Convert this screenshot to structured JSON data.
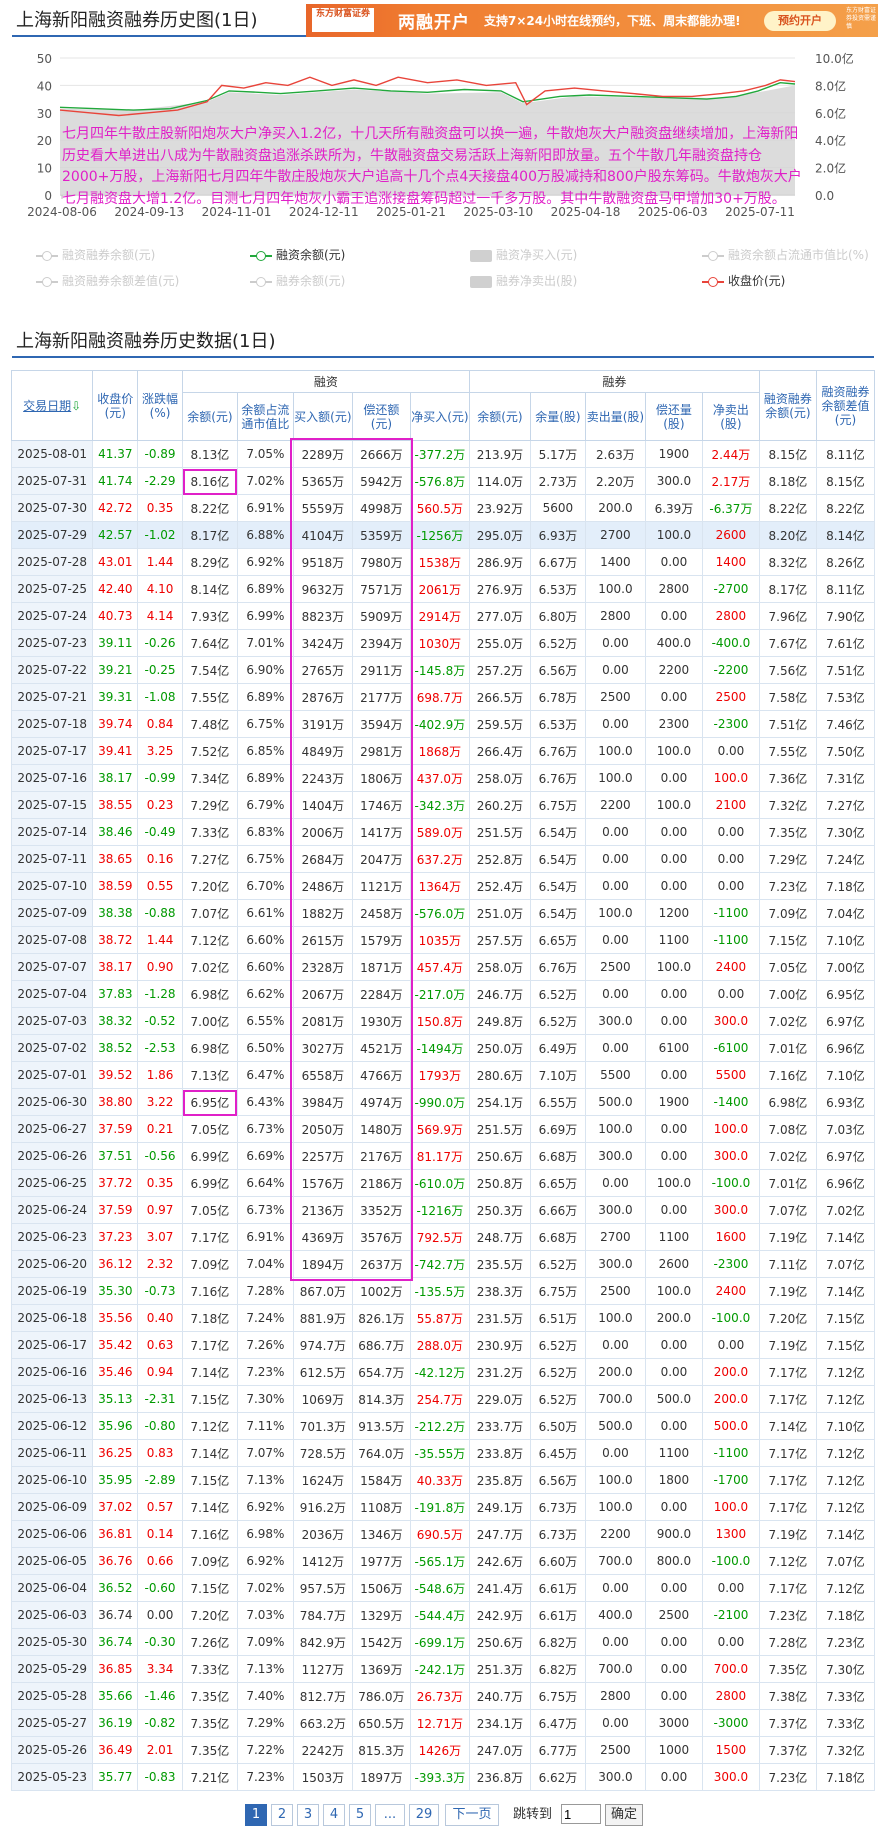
{
  "chart_section": {
    "title": "上海新阳融资融券历史图(1日)"
  },
  "banner": {
    "logo_text": "东方财富证券",
    "main_text": "两融开户",
    "sub_text": "支持7×24小时在线预约，下班、周末都能办理!",
    "button_label": "预约开户",
    "fine_print": "东方财富证券投资需谨慎"
  },
  "chart_data": {
    "type": "line",
    "x_ticks": [
      "2024-08-06",
      "2024-09-13",
      "2024-11-01",
      "2024-12-11",
      "2025-01-21",
      "2025-03-10",
      "2025-04-18",
      "2025-06-03",
      "2025-07-11"
    ],
    "left_axis_ticks": [
      "50",
      "40",
      "30",
      "20",
      "10",
      "0"
    ],
    "right_axis_ticks": [
      "10.0亿",
      "8.0亿",
      "6.0亿",
      "4.0亿",
      "2.0亿",
      "0.0"
    ],
    "ylim_left": [
      0,
      50
    ],
    "ylim_right": [
      0,
      10
    ],
    "series": [
      {
        "name": "融资余额(元)",
        "color": "#22a83c",
        "axis": "right",
        "x": [
          0,
          0.05,
          0.1,
          0.15,
          0.2,
          0.23,
          0.27,
          0.3,
          0.35,
          0.4,
          0.45,
          0.5,
          0.55,
          0.6,
          0.63,
          0.68,
          0.72,
          0.78,
          0.83,
          0.88,
          0.92,
          0.95,
          0.98,
          1.0
        ],
        "values": [
          6.4,
          6.3,
          6.2,
          6.3,
          6.9,
          7.6,
          7.5,
          7.4,
          7.6,
          7.8,
          7.6,
          7.5,
          7.7,
          7.6,
          6.8,
          7.2,
          7.3,
          7.2,
          7.1,
          7.0,
          7.2,
          7.6,
          8.2,
          8.1
        ]
      },
      {
        "name": "收盘价(元)",
        "color": "#e8443a",
        "axis": "left",
        "x": [
          0,
          0.04,
          0.08,
          0.12,
          0.16,
          0.2,
          0.22,
          0.25,
          0.28,
          0.31,
          0.34,
          0.37,
          0.4,
          0.43,
          0.46,
          0.5,
          0.54,
          0.58,
          0.62,
          0.635,
          0.66,
          0.7,
          0.74,
          0.78,
          0.82,
          0.86,
          0.9,
          0.93,
          0.96,
          0.98,
          1.0
        ],
        "values": [
          31,
          30,
          29,
          30,
          31,
          34,
          40,
          39,
          41,
          40,
          43,
          40,
          42,
          40,
          43,
          41,
          42,
          40,
          41,
          33,
          38,
          39,
          38,
          37,
          36,
          36,
          37,
          38,
          40,
          42,
          41.4
        ]
      },
      {
        "name": "融资余额区域",
        "color": "#d6d6d6",
        "axis": "right",
        "x": [
          0,
          0.1,
          0.2,
          0.23,
          0.3,
          0.4,
          0.5,
          0.6,
          0.63,
          0.7,
          0.8,
          0.9,
          0.95,
          1.0
        ],
        "values": [
          6.3,
          6.2,
          6.8,
          7.5,
          7.3,
          7.7,
          7.4,
          7.5,
          6.7,
          7.2,
          7.1,
          7.1,
          7.5,
          8.0
        ]
      }
    ],
    "annotation": "七月四年牛散庄股新阳炮灰大户净买入1.2亿，十几天所有融资盘可以换一遍，牛散炮灰大户融资盘继续增加，上海新阳历史看大单进出八成为牛散融资盘追涨杀跌所为，牛散融资盘交易活跃上海新阳即放量。五个牛散几年融资盘持仓2000+万股，上海新阳七月四年牛散庄股炮灰大户追高十几个点4天接盘400万股减持和800户股东筹码。牛散炮灰大户七月融资盘大增1.2亿。目测七月四年炮灰小霸王追涨接盘筹码超过一千多万股。其中牛散融资盘马甲增加30+万股。",
    "legend": [
      {
        "label": "融资融券余额(元)",
        "active": false,
        "kind": "line"
      },
      {
        "label": "融资余额(元)",
        "active": true,
        "kind": "line",
        "color": "#22a83c"
      },
      {
        "label": "融资净买入(元)",
        "active": false,
        "kind": "rect"
      },
      {
        "label": "融资余额占流通市值比(%)",
        "active": false,
        "kind": "line"
      },
      {
        "label": "融资融券余额差值(元)",
        "active": false,
        "kind": "line"
      },
      {
        "label": "融券余额(元)",
        "active": false,
        "kind": "line"
      },
      {
        "label": "融券净卖出(股)",
        "active": false,
        "kind": "rect"
      },
      {
        "label": "收盘价(元)",
        "active": true,
        "kind": "line",
        "color": "#e8443a"
      }
    ]
  },
  "table_section": {
    "title": "上海新阳融资融券历史数据(1日)"
  },
  "table": {
    "group_headers": {
      "rz": "融资",
      "rq": "融券"
    },
    "headers": {
      "date": "交易日期",
      "close": "收盘价(元)",
      "chg": "涨跌幅(%)",
      "rz_bal": "余额(元)",
      "rz_ratio": "余额占流通市值比",
      "rz_buy": "买入额(元)",
      "rz_repay": "偿还额(元)",
      "rz_net": "净买入(元)",
      "rq_bal": "余额(元)",
      "rq_vol": "余量(股)",
      "rq_sell": "卖出量(股)",
      "rq_repay": "偿还量(股)",
      "rq_net": "净卖出(股)",
      "total": "融资融券余额(元)",
      "diff": "融资融券余额差值(元)"
    },
    "rows": [
      [
        "2025-08-01",
        "41.37",
        "-0.89",
        "8.13亿",
        "7.05%",
        "2289万",
        "2666万",
        "-377.2万",
        "213.9万",
        "5.17万",
        "2.63万",
        "1900",
        "2.44万",
        "8.15亿",
        "8.11亿"
      ],
      [
        "2025-07-31",
        "41.74",
        "-2.29",
        "8.16亿",
        "7.02%",
        "5365万",
        "5942万",
        "-576.8万",
        "114.0万",
        "2.73万",
        "2.20万",
        "300.0",
        "2.17万",
        "8.18亿",
        "8.15亿"
      ],
      [
        "2025-07-30",
        "42.72",
        "0.35",
        "8.22亿",
        "6.91%",
        "5559万",
        "4998万",
        "560.5万",
        "23.92万",
        "5600",
        "200.0",
        "6.39万",
        "-6.37万",
        "8.22亿",
        "8.22亿"
      ],
      [
        "2025-07-29",
        "42.57",
        "-1.02",
        "8.17亿",
        "6.88%",
        "4104万",
        "5359万",
        "-1256万",
        "295.0万",
        "6.93万",
        "2700",
        "100.0",
        "2600",
        "8.20亿",
        "8.14亿"
      ],
      [
        "2025-07-28",
        "43.01",
        "1.44",
        "8.29亿",
        "6.92%",
        "9518万",
        "7980万",
        "1538万",
        "286.9万",
        "6.67万",
        "1400",
        "0.00",
        "1400",
        "8.32亿",
        "8.26亿"
      ],
      [
        "2025-07-25",
        "42.40",
        "4.10",
        "8.14亿",
        "6.89%",
        "9632万",
        "7571万",
        "2061万",
        "276.9万",
        "6.53万",
        "100.0",
        "2800",
        "-2700",
        "8.17亿",
        "8.11亿"
      ],
      [
        "2025-07-24",
        "40.73",
        "4.14",
        "7.93亿",
        "6.99%",
        "8823万",
        "5909万",
        "2914万",
        "277.0万",
        "6.80万",
        "2800",
        "0.00",
        "2800",
        "7.96亿",
        "7.90亿"
      ],
      [
        "2025-07-23",
        "39.11",
        "-0.26",
        "7.64亿",
        "7.01%",
        "3424万",
        "2394万",
        "1030万",
        "255.0万",
        "6.52万",
        "0.00",
        "400.0",
        "-400.0",
        "7.67亿",
        "7.61亿"
      ],
      [
        "2025-07-22",
        "39.21",
        "-0.25",
        "7.54亿",
        "6.90%",
        "2765万",
        "2911万",
        "-145.8万",
        "257.2万",
        "6.56万",
        "0.00",
        "2200",
        "-2200",
        "7.56亿",
        "7.51亿"
      ],
      [
        "2025-07-21",
        "39.31",
        "-1.08",
        "7.55亿",
        "6.89%",
        "2876万",
        "2177万",
        "698.7万",
        "266.5万",
        "6.78万",
        "2500",
        "0.00",
        "2500",
        "7.58亿",
        "7.53亿"
      ],
      [
        "2025-07-18",
        "39.74",
        "0.84",
        "7.48亿",
        "6.75%",
        "3191万",
        "3594万",
        "-402.9万",
        "259.5万",
        "6.53万",
        "0.00",
        "2300",
        "-2300",
        "7.51亿",
        "7.46亿"
      ],
      [
        "2025-07-17",
        "39.41",
        "3.25",
        "7.52亿",
        "6.85%",
        "4849万",
        "2981万",
        "1868万",
        "266.4万",
        "6.76万",
        "100.0",
        "100.0",
        "0.00",
        "7.55亿",
        "7.50亿"
      ],
      [
        "2025-07-16",
        "38.17",
        "-0.99",
        "7.34亿",
        "6.89%",
        "2243万",
        "1806万",
        "437.0万",
        "258.0万",
        "6.76万",
        "100.0",
        "0.00",
        "100.0",
        "7.36亿",
        "7.31亿"
      ],
      [
        "2025-07-15",
        "38.55",
        "0.23",
        "7.29亿",
        "6.79%",
        "1404万",
        "1746万",
        "-342.3万",
        "260.2万",
        "6.75万",
        "2200",
        "100.0",
        "2100",
        "7.32亿",
        "7.27亿"
      ],
      [
        "2025-07-14",
        "38.46",
        "-0.49",
        "7.33亿",
        "6.83%",
        "2006万",
        "1417万",
        "589.0万",
        "251.5万",
        "6.54万",
        "0.00",
        "0.00",
        "0.00",
        "7.35亿",
        "7.30亿"
      ],
      [
        "2025-07-11",
        "38.65",
        "0.16",
        "7.27亿",
        "6.75%",
        "2684万",
        "2047万",
        "637.2万",
        "252.8万",
        "6.54万",
        "0.00",
        "0.00",
        "0.00",
        "7.29亿",
        "7.24亿"
      ],
      [
        "2025-07-10",
        "38.59",
        "0.55",
        "7.20亿",
        "6.70%",
        "2486万",
        "1121万",
        "1364万",
        "252.4万",
        "6.54万",
        "0.00",
        "0.00",
        "0.00",
        "7.23亿",
        "7.18亿"
      ],
      [
        "2025-07-09",
        "38.38",
        "-0.88",
        "7.07亿",
        "6.61%",
        "1882万",
        "2458万",
        "-576.0万",
        "251.0万",
        "6.54万",
        "100.0",
        "1200",
        "-1100",
        "7.09亿",
        "7.04亿"
      ],
      [
        "2025-07-08",
        "38.72",
        "1.44",
        "7.12亿",
        "6.60%",
        "2615万",
        "1579万",
        "1035万",
        "257.5万",
        "6.65万",
        "0.00",
        "1100",
        "-1100",
        "7.15亿",
        "7.10亿"
      ],
      [
        "2025-07-07",
        "38.17",
        "0.90",
        "7.02亿",
        "6.60%",
        "2328万",
        "1871万",
        "457.4万",
        "258.0万",
        "6.76万",
        "2500",
        "100.0",
        "2400",
        "7.05亿",
        "7.00亿"
      ],
      [
        "2025-07-04",
        "37.83",
        "-1.28",
        "6.98亿",
        "6.62%",
        "2067万",
        "2284万",
        "-217.0万",
        "246.7万",
        "6.52万",
        "0.00",
        "0.00",
        "0.00",
        "7.00亿",
        "6.95亿"
      ],
      [
        "2025-07-03",
        "38.32",
        "-0.52",
        "7.00亿",
        "6.55%",
        "2081万",
        "1930万",
        "150.8万",
        "249.8万",
        "6.52万",
        "300.0",
        "0.00",
        "300.0",
        "7.02亿",
        "6.97亿"
      ],
      [
        "2025-07-02",
        "38.52",
        "-2.53",
        "6.98亿",
        "6.50%",
        "3027万",
        "4521万",
        "-1494万",
        "250.0万",
        "6.49万",
        "0.00",
        "6100",
        "-6100",
        "7.01亿",
        "6.96亿"
      ],
      [
        "2025-07-01",
        "39.52",
        "1.86",
        "7.13亿",
        "6.47%",
        "6558万",
        "4766万",
        "1793万",
        "280.6万",
        "7.10万",
        "5500",
        "0.00",
        "5500",
        "7.16亿",
        "7.10亿"
      ],
      [
        "2025-06-30",
        "38.80",
        "3.22",
        "6.95亿",
        "6.43%",
        "3984万",
        "4974万",
        "-990.0万",
        "254.1万",
        "6.55万",
        "500.0",
        "1900",
        "-1400",
        "6.98亿",
        "6.93亿"
      ],
      [
        "2025-06-27",
        "37.59",
        "0.21",
        "7.05亿",
        "6.73%",
        "2050万",
        "1480万",
        "569.9万",
        "251.5万",
        "6.69万",
        "100.0",
        "0.00",
        "100.0",
        "7.08亿",
        "7.03亿"
      ],
      [
        "2025-06-26",
        "37.51",
        "-0.56",
        "6.99亿",
        "6.69%",
        "2257万",
        "2176万",
        "81.17万",
        "250.6万",
        "6.68万",
        "300.0",
        "0.00",
        "300.0",
        "7.02亿",
        "6.97亿"
      ],
      [
        "2025-06-25",
        "37.72",
        "0.35",
        "6.99亿",
        "6.64%",
        "1576万",
        "2186万",
        "-610.0万",
        "250.8万",
        "6.65万",
        "0.00",
        "100.0",
        "-100.0",
        "7.01亿",
        "6.96亿"
      ],
      [
        "2025-06-24",
        "37.59",
        "0.97",
        "7.05亿",
        "6.73%",
        "2136万",
        "3352万",
        "-1216万",
        "250.3万",
        "6.66万",
        "300.0",
        "0.00",
        "300.0",
        "7.07亿",
        "7.02亿"
      ],
      [
        "2025-06-23",
        "37.23",
        "3.07",
        "7.17亿",
        "6.91%",
        "4369万",
        "3576万",
        "792.5万",
        "248.7万",
        "6.68万",
        "2700",
        "1100",
        "1600",
        "7.19亿",
        "7.14亿"
      ],
      [
        "2025-06-20",
        "36.12",
        "2.32",
        "7.09亿",
        "7.04%",
        "1894万",
        "2637万",
        "-742.7万",
        "235.5万",
        "6.52万",
        "300.0",
        "2600",
        "-2300",
        "7.11亿",
        "7.07亿"
      ],
      [
        "2025-06-19",
        "35.30",
        "-0.73",
        "7.16亿",
        "7.28%",
        "867.0万",
        "1002万",
        "-135.5万",
        "238.3万",
        "6.75万",
        "2500",
        "100.0",
        "2400",
        "7.19亿",
        "7.14亿"
      ],
      [
        "2025-06-18",
        "35.56",
        "0.40",
        "7.18亿",
        "7.24%",
        "881.9万",
        "826.1万",
        "55.87万",
        "231.5万",
        "6.51万",
        "100.0",
        "200.0",
        "-100.0",
        "7.20亿",
        "7.15亿"
      ],
      [
        "2025-06-17",
        "35.42",
        "0.63",
        "7.17亿",
        "7.26%",
        "974.7万",
        "686.7万",
        "288.0万",
        "230.9万",
        "6.52万",
        "0.00",
        "0.00",
        "0.00",
        "7.19亿",
        "7.15亿"
      ],
      [
        "2025-06-16",
        "35.46",
        "0.94",
        "7.14亿",
        "7.23%",
        "612.5万",
        "654.7万",
        "-42.12万",
        "231.2万",
        "6.52万",
        "200.0",
        "0.00",
        "200.0",
        "7.17亿",
        "7.12亿"
      ],
      [
        "2025-06-13",
        "35.13",
        "-2.31",
        "7.15亿",
        "7.30%",
        "1069万",
        "814.3万",
        "254.7万",
        "229.0万",
        "6.52万",
        "700.0",
        "500.0",
        "200.0",
        "7.17亿",
        "7.12亿"
      ],
      [
        "2025-06-12",
        "35.96",
        "-0.80",
        "7.12亿",
        "7.11%",
        "701.3万",
        "913.5万",
        "-212.2万",
        "233.7万",
        "6.50万",
        "500.0",
        "0.00",
        "500.0",
        "7.14亿",
        "7.10亿"
      ],
      [
        "2025-06-11",
        "36.25",
        "0.83",
        "7.14亿",
        "7.07%",
        "728.5万",
        "764.0万",
        "-35.55万",
        "233.8万",
        "6.45万",
        "0.00",
        "1100",
        "-1100",
        "7.17亿",
        "7.12亿"
      ],
      [
        "2025-06-10",
        "35.95",
        "-2.89",
        "7.15亿",
        "7.13%",
        "1624万",
        "1584万",
        "40.33万",
        "235.8万",
        "6.56万",
        "100.0",
        "1800",
        "-1700",
        "7.17亿",
        "7.12亿"
      ],
      [
        "2025-06-09",
        "37.02",
        "0.57",
        "7.14亿",
        "6.92%",
        "916.2万",
        "1108万",
        "-191.8万",
        "249.1万",
        "6.73万",
        "100.0",
        "0.00",
        "100.0",
        "7.17亿",
        "7.12亿"
      ],
      [
        "2025-06-06",
        "36.81",
        "0.14",
        "7.16亿",
        "6.98%",
        "2036万",
        "1346万",
        "690.5万",
        "247.7万",
        "6.73万",
        "2200",
        "900.0",
        "1300",
        "7.19亿",
        "7.14亿"
      ],
      [
        "2025-06-05",
        "36.76",
        "0.66",
        "7.09亿",
        "6.92%",
        "1412万",
        "1977万",
        "-565.1万",
        "242.6万",
        "6.60万",
        "700.0",
        "800.0",
        "-100.0",
        "7.12亿",
        "7.07亿"
      ],
      [
        "2025-06-04",
        "36.52",
        "-0.60",
        "7.15亿",
        "7.02%",
        "957.5万",
        "1506万",
        "-548.6万",
        "241.4万",
        "6.61万",
        "0.00",
        "0.00",
        "0.00",
        "7.17亿",
        "7.12亿"
      ],
      [
        "2025-06-03",
        "36.74",
        "0.00",
        "7.20亿",
        "7.03%",
        "784.7万",
        "1329万",
        "-544.4万",
        "242.9万",
        "6.61万",
        "400.0",
        "2500",
        "-2100",
        "7.23亿",
        "7.18亿"
      ],
      [
        "2025-05-30",
        "36.74",
        "-0.30",
        "7.26亿",
        "7.09%",
        "842.9万",
        "1542万",
        "-699.1万",
        "250.6万",
        "6.82万",
        "0.00",
        "0.00",
        "0.00",
        "7.28亿",
        "7.23亿"
      ],
      [
        "2025-05-29",
        "36.85",
        "3.34",
        "7.33亿",
        "7.13%",
        "1127万",
        "1369万",
        "-242.1万",
        "251.3万",
        "6.82万",
        "700.0",
        "0.00",
        "700.0",
        "7.35亿",
        "7.30亿"
      ],
      [
        "2025-05-28",
        "35.66",
        "-1.46",
        "7.35亿",
        "7.40%",
        "812.7万",
        "786.0万",
        "26.73万",
        "240.7万",
        "6.75万",
        "2800",
        "0.00",
        "2800",
        "7.38亿",
        "7.33亿"
      ],
      [
        "2025-05-27",
        "36.19",
        "-0.82",
        "7.35亿",
        "7.29%",
        "663.2万",
        "650.5万",
        "12.71万",
        "234.1万",
        "6.47万",
        "0.00",
        "3000",
        "-3000",
        "7.37亿",
        "7.33亿"
      ],
      [
        "2025-05-26",
        "36.49",
        "2.01",
        "7.35亿",
        "7.22%",
        "2242万",
        "815.3万",
        "1426万",
        "247.0万",
        "6.77万",
        "2500",
        "1000",
        "1500",
        "7.37亿",
        "7.32亿"
      ],
      [
        "2025-05-23",
        "35.77",
        "-0.83",
        "7.21亿",
        "7.23%",
        "1503万",
        "1897万",
        "-393.3万",
        "236.8万",
        "6.62万",
        "300.0",
        "0.00",
        "300.0",
        "7.23亿",
        "7.18亿"
      ]
    ],
    "highlight_row_index": 3
  },
  "pager": {
    "pages": [
      "1",
      "2",
      "3",
      "4",
      "5",
      "...",
      "29"
    ],
    "current": "1",
    "next_label": "下一页",
    "jump_label": "跳转到",
    "jump_value": "1",
    "confirm_label": "确定"
  }
}
